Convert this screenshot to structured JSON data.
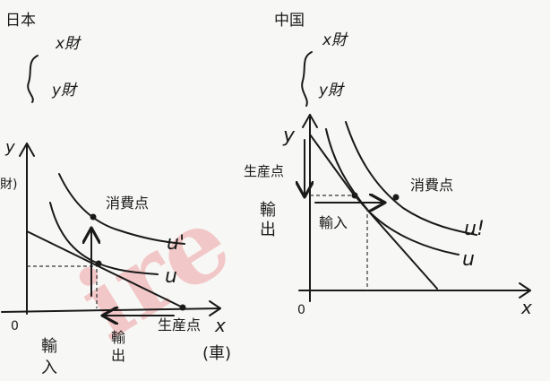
{
  "watermark": {
    "text": "ire",
    "color": "#f2c7c7"
  },
  "left_panel": {
    "country": "日本",
    "goods": {
      "x": "x財",
      "y": "y財"
    },
    "axes": {
      "y_label": "y",
      "y_label_suffix": "財)",
      "x_label": "x",
      "x_unit": "(車)",
      "origin": "0"
    },
    "curves": {
      "outer": "u'",
      "inner": "u"
    },
    "annotations": {
      "consumption_point": "消費点",
      "production_point": "生産点",
      "import_label_1": "輸",
      "import_label_2": "入",
      "export_label_1": "輸",
      "export_label_2": "出"
    }
  },
  "right_panel": {
    "country": "中国",
    "goods": {
      "x": "x財",
      "y": "y財"
    },
    "axes": {
      "y_label": "y",
      "x_label": "x",
      "origin": "0"
    },
    "curves": {
      "outer": "u!",
      "inner": "u"
    },
    "annotations": {
      "production_point": "生産点",
      "consumption_point": "消費点",
      "export_label_1": "輸",
      "export_label_2": "出",
      "import_label": "輸入"
    }
  }
}
